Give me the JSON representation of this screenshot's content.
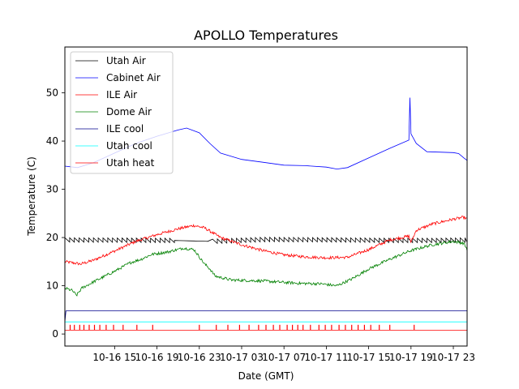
{
  "chart_data": {
    "type": "line",
    "title": "APOLLO Temperatures",
    "xlabel": "Date (GMT)",
    "ylabel": "Temperature (C)",
    "xlim_hours": [
      9.3,
      47.3
    ],
    "ylim": [
      -2.5,
      59.5
    ],
    "x_ticks": [
      {
        "hour": 14,
        "label": "10-16 15"
      },
      {
        "hour": 18,
        "label": "10-16 19"
      },
      {
        "hour": 22,
        "label": "10-16 23"
      },
      {
        "hour": 26,
        "label": "10-17 03"
      },
      {
        "hour": 30,
        "label": "10-17 07"
      },
      {
        "hour": 34,
        "label": "10-17 11"
      },
      {
        "hour": 38,
        "label": "10-17 15"
      },
      {
        "hour": 42,
        "label": "10-17 19"
      },
      {
        "hour": 46,
        "label": "10-17 23"
      }
    ],
    "y_ticks": [
      0,
      10,
      20,
      30,
      40,
      50
    ],
    "legend_position": "upper-left",
    "series": [
      {
        "name": "Utah Air",
        "color": "#000000",
        "style": "sawtooth",
        "points": [
          [
            9.3,
            19.5
          ],
          [
            19.5,
            19.4
          ],
          [
            23.0,
            19.2
          ],
          [
            28.0,
            19.6
          ],
          [
            35.0,
            19.5
          ],
          [
            40.0,
            19.4
          ],
          [
            42.5,
            19.4
          ],
          [
            44.5,
            19.4
          ],
          [
            47.3,
            19.5
          ]
        ]
      },
      {
        "name": "Cabinet Air",
        "color": "#0000ff",
        "style": "line",
        "points": [
          [
            9.3,
            34.8
          ],
          [
            10.5,
            34.5
          ],
          [
            12.0,
            35.5
          ],
          [
            14.0,
            37.5
          ],
          [
            16.0,
            39.5
          ],
          [
            18.0,
            41.0
          ],
          [
            20.0,
            42.3
          ],
          [
            20.8,
            42.7
          ],
          [
            22.0,
            41.7
          ],
          [
            23.0,
            39.5
          ],
          [
            24.0,
            37.5
          ],
          [
            26.0,
            36.2
          ],
          [
            28.0,
            35.6
          ],
          [
            30.0,
            35.0
          ],
          [
            32.0,
            34.9
          ],
          [
            34.0,
            34.6
          ],
          [
            35.0,
            34.2
          ],
          [
            36.0,
            34.5
          ],
          [
            38.0,
            36.5
          ],
          [
            40.0,
            38.5
          ],
          [
            41.8,
            40.2
          ],
          [
            41.9,
            49.0
          ],
          [
            42.0,
            41.5
          ],
          [
            42.5,
            39.5
          ],
          [
            43.5,
            37.8
          ],
          [
            46.0,
            37.6
          ],
          [
            46.5,
            37.4
          ],
          [
            47.0,
            36.5
          ],
          [
            47.3,
            36.0
          ]
        ]
      },
      {
        "name": "ILE Air",
        "color": "#ff0000",
        "style": "noisy",
        "points": [
          [
            9.3,
            15.0
          ],
          [
            10.8,
            14.5
          ],
          [
            12.0,
            15.3
          ],
          [
            14.0,
            17.2
          ],
          [
            16.0,
            19.2
          ],
          [
            18.0,
            20.6
          ],
          [
            20.0,
            21.8
          ],
          [
            21.5,
            22.5
          ],
          [
            22.5,
            22.0
          ],
          [
            24.0,
            20.0
          ],
          [
            26.0,
            18.5
          ],
          [
            28.0,
            17.3
          ],
          [
            30.0,
            16.4
          ],
          [
            32.0,
            16.0
          ],
          [
            34.0,
            15.8
          ],
          [
            36.0,
            15.9
          ],
          [
            38.0,
            17.5
          ],
          [
            40.0,
            19.5
          ],
          [
            41.8,
            20.3
          ],
          [
            42.0,
            19.0
          ],
          [
            42.5,
            21.5
          ],
          [
            44.0,
            22.8
          ],
          [
            46.0,
            23.8
          ],
          [
            47.0,
            24.2
          ],
          [
            47.3,
            23.8
          ]
        ]
      },
      {
        "name": "Dome Air",
        "color": "#008000",
        "style": "noisy",
        "points": [
          [
            9.3,
            9.5
          ],
          [
            10.0,
            9.0
          ],
          [
            10.4,
            8.0
          ],
          [
            10.9,
            9.5
          ],
          [
            12.0,
            10.8
          ],
          [
            14.0,
            13.0
          ],
          [
            15.5,
            14.8
          ],
          [
            16.5,
            15.5
          ],
          [
            17.5,
            16.5
          ],
          [
            19.0,
            17.0
          ],
          [
            20.5,
            17.8
          ],
          [
            21.5,
            17.5
          ],
          [
            22.5,
            14.5
          ],
          [
            23.0,
            13.5
          ],
          [
            23.5,
            12.0
          ],
          [
            25.0,
            11.2
          ],
          [
            28.0,
            11.0
          ],
          [
            30.0,
            10.7
          ],
          [
            31.5,
            10.5
          ],
          [
            33.5,
            10.4
          ],
          [
            35.0,
            10.0
          ],
          [
            36.5,
            11.5
          ],
          [
            38.0,
            13.5
          ],
          [
            40.0,
            15.5
          ],
          [
            42.0,
            17.3
          ],
          [
            44.0,
            18.5
          ],
          [
            46.0,
            19.2
          ],
          [
            47.0,
            18.8
          ],
          [
            47.3,
            17.5
          ]
        ]
      },
      {
        "name": "ILE cool",
        "color": "#00008b",
        "style": "line",
        "points": [
          [
            9.3,
            2.5
          ],
          [
            9.4,
            4.8
          ],
          [
            47.3,
            4.8
          ]
        ]
      },
      {
        "name": "Utah cool",
        "color": "#00ffff",
        "style": "line",
        "points": [
          [
            9.3,
            2.5
          ],
          [
            47.3,
            2.5
          ]
        ]
      },
      {
        "name": "Utah heat",
        "color": "#ff0000",
        "style": "pulses",
        "baseline": 0.8,
        "pulse_top": 1.9,
        "pulse_hours": [
          9.8,
          10.2,
          10.7,
          11.1,
          11.6,
          12.1,
          12.6,
          13.2,
          13.9,
          14.8,
          16.1,
          17.6,
          22.0,
          23.6,
          24.7,
          25.8,
          26.7,
          27.6,
          28.3,
          29.0,
          29.6,
          30.3,
          30.8,
          31.3,
          31.8,
          32.5,
          33.3,
          33.9,
          34.5,
          35.2,
          35.8,
          36.4,
          37.0,
          37.6,
          38.2,
          39.0,
          40.0,
          42.3
        ]
      }
    ]
  }
}
